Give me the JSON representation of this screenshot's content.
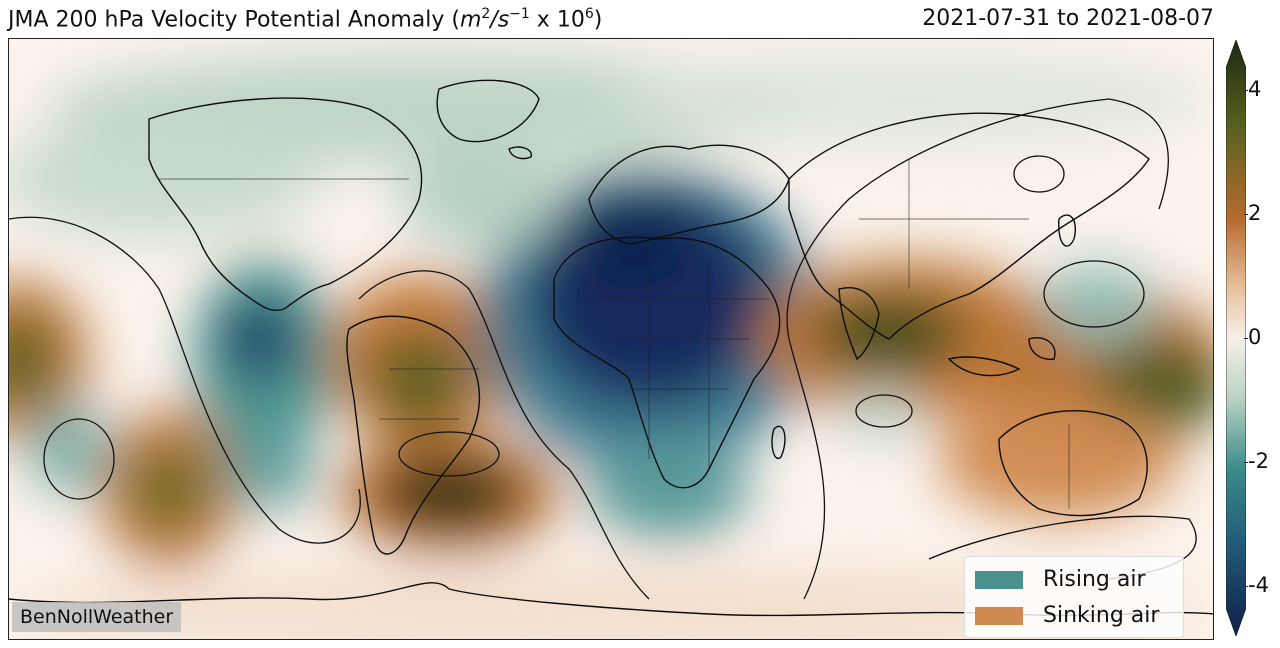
{
  "title": {
    "prefix": "JMA 200 hPa Velocity Potential Anomaly (",
    "unit_m": "m",
    "unit_m_exp": "2",
    "unit_s": "/s",
    "unit_s_exp": "−1",
    "scale_text": " x 10",
    "scale_exp": "6",
    "suffix": ")"
  },
  "date_range": "2021-07-31 to 2021-08-07",
  "colorbar": {
    "min": -4.8,
    "max": 4.8,
    "ticks": [
      {
        "value": 4,
        "label": "4"
      },
      {
        "value": 2,
        "label": "2"
      },
      {
        "value": 0,
        "label": "0"
      },
      {
        "value": -2,
        "label": "-2"
      },
      {
        "value": -4,
        "label": "-4"
      }
    ],
    "colors": {
      "pos_high": "#1e2a10",
      "pos_mid": "#b76a2e",
      "neutral": "#f7efe8",
      "neg_mid": "#3a8b8a",
      "neg_high": "#0f1f4a"
    }
  },
  "legend": {
    "items": [
      {
        "label": "Rising air",
        "color": "#4a908c"
      },
      {
        "label": "Sinking air",
        "color": "#cf8a52"
      }
    ]
  },
  "watermark": "BenNollWeather"
}
